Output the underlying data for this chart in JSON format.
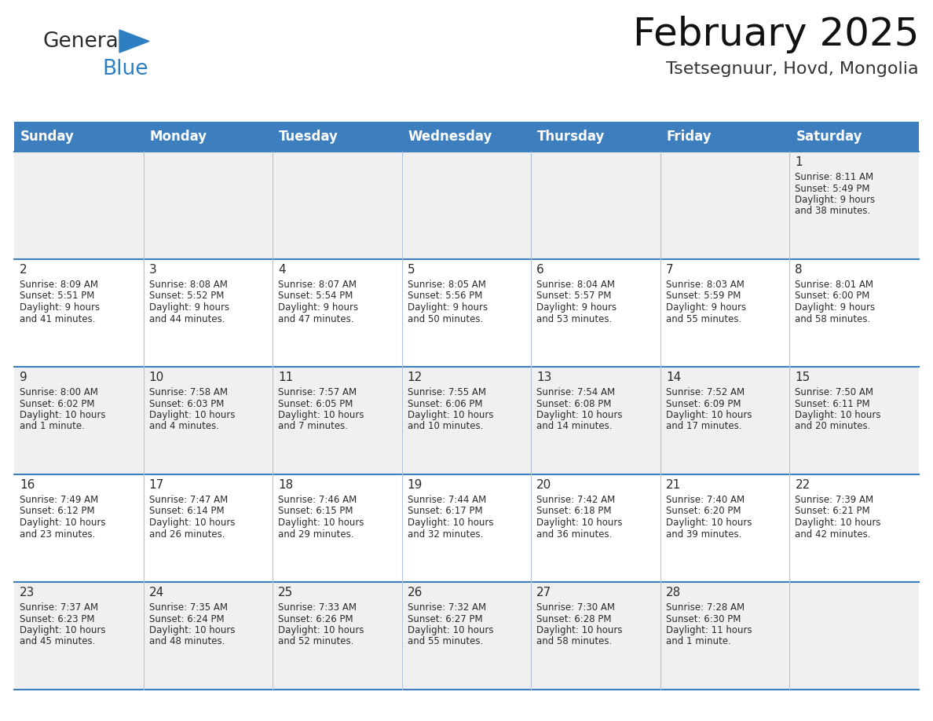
{
  "title": "February 2025",
  "subtitle": "Tsetsegnuur, Hovd, Mongolia",
  "header_color": "#3d7ebf",
  "header_text_color": "#ffffff",
  "cell_bg_row0": "#f0f0f0",
  "cell_bg_row1": "#ffffff",
  "cell_bg_row2": "#f0f0f0",
  "cell_bg_row3": "#ffffff",
  "cell_bg_row4": "#f0f0f0",
  "day_names": [
    "Sunday",
    "Monday",
    "Tuesday",
    "Wednesday",
    "Thursday",
    "Friday",
    "Saturday"
  ],
  "days_data": [
    {
      "day": 1,
      "col": 6,
      "row": 0,
      "sunrise": "8:11 AM",
      "sunset": "5:49 PM",
      "daylight": "9 hours and 38 minutes."
    },
    {
      "day": 2,
      "col": 0,
      "row": 1,
      "sunrise": "8:09 AM",
      "sunset": "5:51 PM",
      "daylight": "9 hours and 41 minutes."
    },
    {
      "day": 3,
      "col": 1,
      "row": 1,
      "sunrise": "8:08 AM",
      "sunset": "5:52 PM",
      "daylight": "9 hours and 44 minutes."
    },
    {
      "day": 4,
      "col": 2,
      "row": 1,
      "sunrise": "8:07 AM",
      "sunset": "5:54 PM",
      "daylight": "9 hours and 47 minutes."
    },
    {
      "day": 5,
      "col": 3,
      "row": 1,
      "sunrise": "8:05 AM",
      "sunset": "5:56 PM",
      "daylight": "9 hours and 50 minutes."
    },
    {
      "day": 6,
      "col": 4,
      "row": 1,
      "sunrise": "8:04 AM",
      "sunset": "5:57 PM",
      "daylight": "9 hours and 53 minutes."
    },
    {
      "day": 7,
      "col": 5,
      "row": 1,
      "sunrise": "8:03 AM",
      "sunset": "5:59 PM",
      "daylight": "9 hours and 55 minutes."
    },
    {
      "day": 8,
      "col": 6,
      "row": 1,
      "sunrise": "8:01 AM",
      "sunset": "6:00 PM",
      "daylight": "9 hours and 58 minutes."
    },
    {
      "day": 9,
      "col": 0,
      "row": 2,
      "sunrise": "8:00 AM",
      "sunset": "6:02 PM",
      "daylight": "10 hours and 1 minute."
    },
    {
      "day": 10,
      "col": 1,
      "row": 2,
      "sunrise": "7:58 AM",
      "sunset": "6:03 PM",
      "daylight": "10 hours and 4 minutes."
    },
    {
      "day": 11,
      "col": 2,
      "row": 2,
      "sunrise": "7:57 AM",
      "sunset": "6:05 PM",
      "daylight": "10 hours and 7 minutes."
    },
    {
      "day": 12,
      "col": 3,
      "row": 2,
      "sunrise": "7:55 AM",
      "sunset": "6:06 PM",
      "daylight": "10 hours and 10 minutes."
    },
    {
      "day": 13,
      "col": 4,
      "row": 2,
      "sunrise": "7:54 AM",
      "sunset": "6:08 PM",
      "daylight": "10 hours and 14 minutes."
    },
    {
      "day": 14,
      "col": 5,
      "row": 2,
      "sunrise": "7:52 AM",
      "sunset": "6:09 PM",
      "daylight": "10 hours and 17 minutes."
    },
    {
      "day": 15,
      "col": 6,
      "row": 2,
      "sunrise": "7:50 AM",
      "sunset": "6:11 PM",
      "daylight": "10 hours and 20 minutes."
    },
    {
      "day": 16,
      "col": 0,
      "row": 3,
      "sunrise": "7:49 AM",
      "sunset": "6:12 PM",
      "daylight": "10 hours and 23 minutes."
    },
    {
      "day": 17,
      "col": 1,
      "row": 3,
      "sunrise": "7:47 AM",
      "sunset": "6:14 PM",
      "daylight": "10 hours and 26 minutes."
    },
    {
      "day": 18,
      "col": 2,
      "row": 3,
      "sunrise": "7:46 AM",
      "sunset": "6:15 PM",
      "daylight": "10 hours and 29 minutes."
    },
    {
      "day": 19,
      "col": 3,
      "row": 3,
      "sunrise": "7:44 AM",
      "sunset": "6:17 PM",
      "daylight": "10 hours and 32 minutes."
    },
    {
      "day": 20,
      "col": 4,
      "row": 3,
      "sunrise": "7:42 AM",
      "sunset": "6:18 PM",
      "daylight": "10 hours and 36 minutes."
    },
    {
      "day": 21,
      "col": 5,
      "row": 3,
      "sunrise": "7:40 AM",
      "sunset": "6:20 PM",
      "daylight": "10 hours and 39 minutes."
    },
    {
      "day": 22,
      "col": 6,
      "row": 3,
      "sunrise": "7:39 AM",
      "sunset": "6:21 PM",
      "daylight": "10 hours and 42 minutes."
    },
    {
      "day": 23,
      "col": 0,
      "row": 4,
      "sunrise": "7:37 AM",
      "sunset": "6:23 PM",
      "daylight": "10 hours and 45 minutes."
    },
    {
      "day": 24,
      "col": 1,
      "row": 4,
      "sunrise": "7:35 AM",
      "sunset": "6:24 PM",
      "daylight": "10 hours and 48 minutes."
    },
    {
      "day": 25,
      "col": 2,
      "row": 4,
      "sunrise": "7:33 AM",
      "sunset": "6:26 PM",
      "daylight": "10 hours and 52 minutes."
    },
    {
      "day": 26,
      "col": 3,
      "row": 4,
      "sunrise": "7:32 AM",
      "sunset": "6:27 PM",
      "daylight": "10 hours and 55 minutes."
    },
    {
      "day": 27,
      "col": 4,
      "row": 4,
      "sunrise": "7:30 AM",
      "sunset": "6:28 PM",
      "daylight": "10 hours and 58 minutes."
    },
    {
      "day": 28,
      "col": 5,
      "row": 4,
      "sunrise": "7:28 AM",
      "sunset": "6:30 PM",
      "daylight": "11 hours and 1 minute."
    }
  ],
  "logo_general_color": "#2b2b2b",
  "logo_blue_color": "#2e7fc1",
  "logo_triangle_color": "#2e7fc1",
  "grid_line_color": "#3d7ebf",
  "separator_color": "#b0c4d8",
  "text_color": "#2b2b2b",
  "title_fontsize": 36,
  "subtitle_fontsize": 16,
  "header_fontsize": 12,
  "day_num_fontsize": 11,
  "detail_fontsize": 8.5
}
